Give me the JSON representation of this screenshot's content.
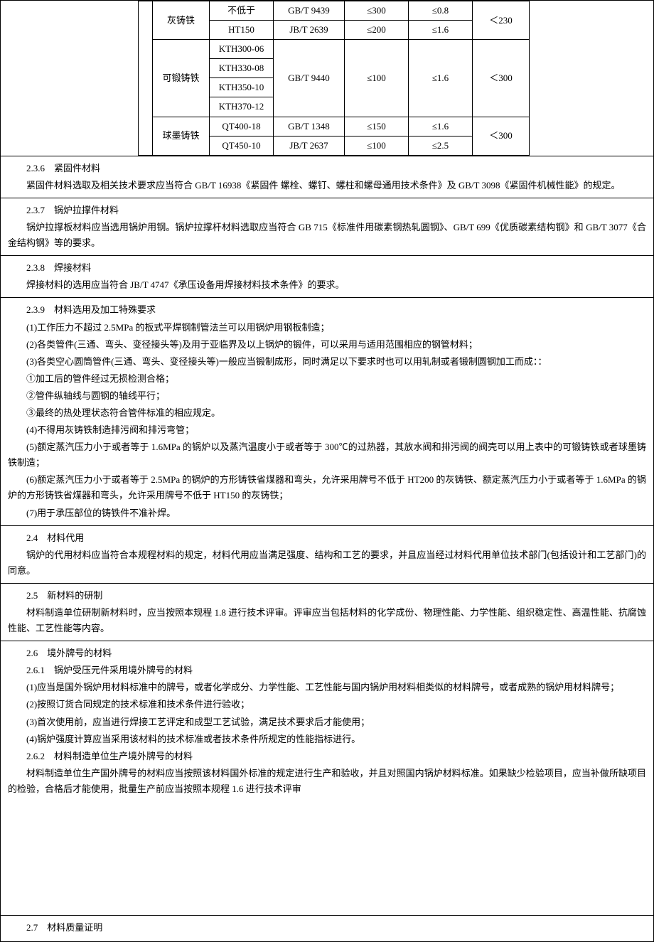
{
  "table": {
    "rows": [
      {
        "material": "灰铸铁",
        "material_rowspan": 2,
        "grade": "不低于",
        "std": "GB/T 9439",
        "v1": "≤300",
        "v2": "≤0.8",
        "v3": "＜230",
        "v3_rowspan": 2
      },
      {
        "grade": "HT150",
        "std": "JB/T 2639",
        "v1": "≤200",
        "v2": "≤1.6"
      },
      {
        "material": "可锻铸铁",
        "material_rowspan": 4,
        "grade": "KTH300-06",
        "std": "GB/T 9440",
        "std_rowspan": 4,
        "v1": "≤100",
        "v1_rowspan": 4,
        "v2": "≤1.6",
        "v2_rowspan": 4,
        "v3": "＜300",
        "v3_rowspan": 4
      },
      {
        "grade": "KTH330-08"
      },
      {
        "grade": "KTH350-10"
      },
      {
        "grade": "KTH370-12"
      },
      {
        "material": "球墨铸铁",
        "material_rowspan": 2,
        "grade": "QT400-18",
        "std": "GB/T 1348",
        "v1": "≤150",
        "v2": "≤1.6",
        "v3": "＜300",
        "v3_rowspan": 2
      },
      {
        "grade": "QT450-10",
        "std": "JB/T 2637",
        "v1": "≤100",
        "v2": "≤2.5"
      }
    ]
  },
  "s236": {
    "title": "2.3.6　紧固件材料",
    "p1": "紧固件材料选取及相关技术要求应当符合 GB/T 16938《紧固件 螺栓、螺钉、螺柱和螺母通用技术条件》及 GB/T 3098《紧固件机械性能》的规定。"
  },
  "s237": {
    "title": "2.3.7　锅炉拉撑件材料",
    "p1": "锅炉拉撑板材料应当选用锅炉用钢。锅炉拉撑杆材料选取应当符合 GB 715《标准件用碳素钢热轧圆钢》、GB/T 699《优质碳素结构钢》和 GB/T 3077《合金结构钢》等的要求。"
  },
  "s238": {
    "title": "2.3.8　焊接材料",
    "p1": "焊接材料的选用应当符合 JB/T 4747《承压设备用焊接材料技术条件》的要求。"
  },
  "s239": {
    "title": "2.3.9　材料选用及加工特殊要求",
    "p1": "(1)工作压力不超过 2.5MPa 的板式平焊钢制管法兰可以用锅炉用钢板制造；",
    "p2": "(2)各类管件(三通、弯头、变径接头等)及用于亚临界及以上锅炉的锻件，可以采用与适用范围相应的钢管材料；",
    "p3": "(3)各类空心圆筒管件(三通、弯头、变径接头等)一般应当锻制成形，同时满足以下要求时也可以用轧制或者锻制圆钢加工而成：：",
    "p4": "①加工后的管件经过无损检测合格；",
    "p5": "②管件纵轴线与圆钢的轴线平行；",
    "p6": "③最终的热处理状态符合管件标准的相应规定。",
    "p7": "(4)不得用灰铸铁制造排污阀和排污弯管；",
    "p8": "(5)额定蒸汽压力小于或者等于 1.6MPa 的锅炉以及蒸汽温度小于或者等于 300℃的过热器，其放水阀和排污阀的阀壳可以用上表中的可锻铸铁或者球墨铸铁制造；",
    "p9": "(6)额定蒸汽压力小于或者等于 2.5MPa 的锅炉的方形铸铁省煤器和弯头，允许采用牌号不低于 HT200 的灰铸铁、额定蒸汽压力小于或者等于 1.6MPa 的锅炉的方形铸铁省煤器和弯头，允许采用牌号不低于 HT150 的灰铸铁；",
    "p10": "(7)用于承压部位的铸铁件不准补焊。"
  },
  "s24": {
    "title": "2.4　材料代用",
    "p1": "锅炉的代用材料应当符合本规程材料的规定，材料代用应当满足强度、结构和工艺的要求，并且应当经过材料代用单位技术部门(包括设计和工艺部门)的同意。"
  },
  "s25": {
    "title": "2.5　新材料的研制",
    "p1": "材料制造单位研制新材料时，应当按照本规程 1.8 进行技术评审。评审应当包括材料的化学成份、物理性能、力学性能、组织稳定性、高温性能、抗腐蚀性能、工艺性能等内容。"
  },
  "s26": {
    "title": "2.6　境外牌号的材料",
    "sub1": "2.6.1　锅炉受压元件采用境外牌号的材料",
    "p1": "(1)应当是国外锅炉用材料标准中的牌号，或者化学成分、力学性能、工艺性能与国内锅炉用材料相类似的材料牌号，或者成熟的锅炉用材料牌号；",
    "p2": "(2)按照订货合同规定的技术标准和技术条件进行验收；",
    "p3": "(3)首次使用前，应当进行焊接工艺评定和成型工艺试验，满足技术要求后才能使用；",
    "p4": "(4)锅炉强度计算应当采用该材料的技术标准或者技术条件所规定的性能指标进行。",
    "sub2": "2.6.2　材料制造单位生产境外牌号的材料",
    "p5": "材料制造单位生产国外牌号的材料应当按照该材料国外标准的规定进行生产和验收，并且对照国内锅炉材料标准。如果缺少检验项目，应当补做所缺项目的检验，合格后才能使用，批量生产前应当按照本规程 1.6 进行技术评审"
  },
  "s27": {
    "title": "2.7　材料质量证明"
  }
}
